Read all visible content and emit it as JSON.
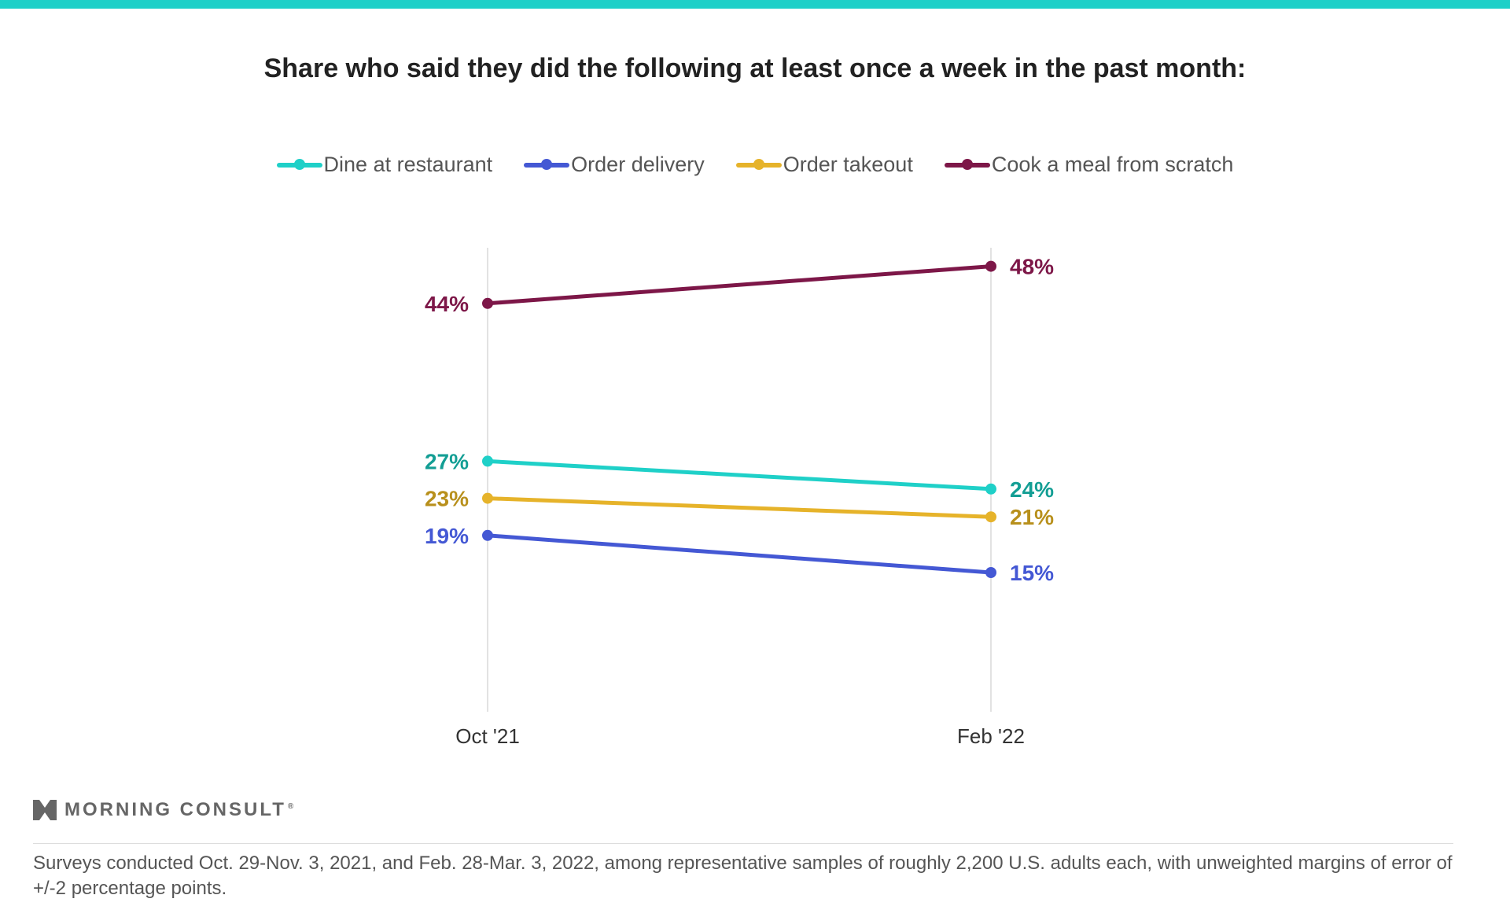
{
  "title": "Share who said they did the following at least once a week in the past month:",
  "logo": {
    "text": "MORNING CONSULT",
    "mark": "®"
  },
  "footnote": "Surveys conducted Oct. 29-Nov. 3, 2021, and Feb. 28-Mar. 3, 2022, among representative samples of roughly 2,200 U.S. adults each, with unweighted margins of error of +/-2 percentage points.",
  "chart_data": {
    "type": "line",
    "title": "Share who said they did the following at least once a week in the past month:",
    "xlabel": "",
    "ylabel": "",
    "categories": [
      "Oct '21",
      "Feb '22"
    ],
    "ylim": [
      0,
      50
    ],
    "grid": "vertical lines at each category",
    "legend": "top-center",
    "series": [
      {
        "name": "Dine at restaurant",
        "values": [
          27,
          24
        ],
        "labels": [
          "27%",
          "24%"
        ],
        "color": "#1fd0c8",
        "label_color": "#139e94"
      },
      {
        "name": "Order delivery",
        "values": [
          19,
          15
        ],
        "labels": [
          "19%",
          "15%"
        ],
        "color": "#4458d4",
        "label_color": "#4458d4"
      },
      {
        "name": "Order takeout",
        "values": [
          23,
          21
        ],
        "labels": [
          "23%",
          "21%"
        ],
        "color": "#e6b32a",
        "label_color": "#b8901c"
      },
      {
        "name": "Cook a meal from scratch",
        "values": [
          44,
          48
        ],
        "labels": [
          "44%",
          "48%"
        ],
        "color": "#7d1748",
        "label_color": "#7d1748"
      }
    ]
  }
}
